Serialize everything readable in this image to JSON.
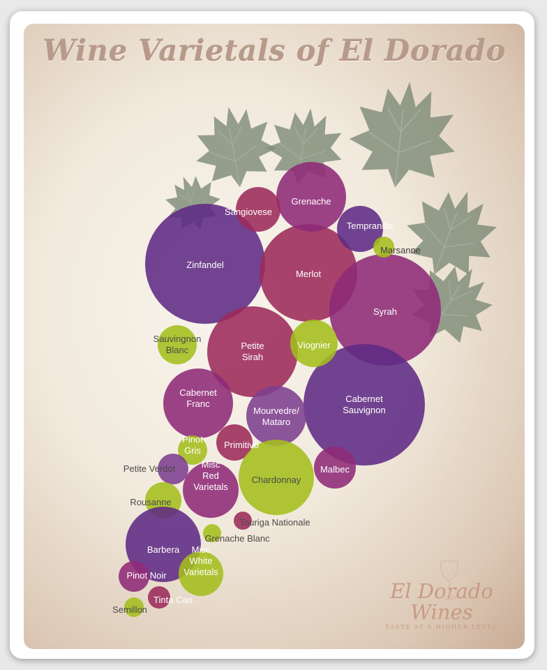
{
  "title": "Wine Varietals of El Dorado",
  "logo": {
    "brand": "El Dorado Wines",
    "tagline": "TASTE AT A HIGHER LEVEL"
  },
  "colors": {
    "red_purple": "#5e2a84",
    "red_magenta": "#8e2a78",
    "red_crimson": "#9c2a5a",
    "red_plum": "#7d3f8e",
    "white_green": "#a4be1c",
    "leaf": "#7f8c79",
    "title": "#b79a8a"
  },
  "grapes": [
    {
      "name": "Zinfandel",
      "lines": [
        "Zinfandel"
      ],
      "color": "#5e2a84"
    },
    {
      "name": "Merlot",
      "lines": [
        "Merlot"
      ],
      "color": "#9c2a5a"
    },
    {
      "name": "Syrah",
      "lines": [
        "Syrah"
      ],
      "color": "#8e2a78"
    },
    {
      "name": "Cabernet Sauvignon",
      "lines": [
        "Cabernet",
        "Sauvignon"
      ],
      "color": "#5e2a84"
    },
    {
      "name": "Petite Sirah",
      "lines": [
        "Petite",
        "Sirah"
      ],
      "color": "#9c2a5a"
    },
    {
      "name": "Grenache",
      "lines": [
        "Grenache"
      ],
      "color": "#8e2a78"
    },
    {
      "name": "Sangiovese",
      "lines": [
        "Sangiovese"
      ],
      "color": "#9c2a5a"
    },
    {
      "name": "Tempranillo",
      "lines": [
        "Tempranillo"
      ],
      "color": "#5e2a84"
    },
    {
      "name": "Marsanne",
      "lines": [
        "Marsanne"
      ],
      "color": "#a4be1c"
    },
    {
      "name": "Sauvingnon Blanc",
      "lines": [
        "Sauvingnon",
        "Blanc"
      ],
      "color": "#a4be1c"
    },
    {
      "name": "Viognier",
      "lines": [
        "Viognier"
      ],
      "color": "#a4be1c"
    },
    {
      "name": "Cabernet Franc",
      "lines": [
        "Cabernet",
        "Franc"
      ],
      "color": "#8e2a78"
    },
    {
      "name": "Mourvedre/Mataro",
      "lines": [
        "Mourvedre/",
        "Mataro"
      ],
      "color": "#7d3f8e"
    },
    {
      "name": "Pinot Gris",
      "lines": [
        "Pinot",
        "Gris"
      ],
      "color": "#a4be1c"
    },
    {
      "name": "Primitivo",
      "lines": [
        "Primitivo"
      ],
      "color": "#9c2a5a"
    },
    {
      "name": "Chardonnay",
      "lines": [
        "Chardonnay"
      ],
      "color": "#a4be1c"
    },
    {
      "name": "Malbec",
      "lines": [
        "Malbec"
      ],
      "color": "#8e2a78"
    },
    {
      "name": "Petite Verdot",
      "lines": [
        "Petite Verdot"
      ],
      "color": "#7d3f8e"
    },
    {
      "name": "Misc Red Varietals",
      "lines": [
        "Misc",
        "Red",
        "Varietals"
      ],
      "color": "#8e2a78"
    },
    {
      "name": "Rousanne",
      "lines": [
        "Rousanne"
      ],
      "color": "#a4be1c"
    },
    {
      "name": "Touriga Nationale",
      "lines": [
        "Touriga Nationale"
      ],
      "color": "#9c2a5a"
    },
    {
      "name": "Barbera",
      "lines": [
        "Barbera"
      ],
      "color": "#5e2a84"
    },
    {
      "name": "Grenache Blanc",
      "lines": [
        "Grenache Blanc"
      ],
      "color": "#a4be1c"
    },
    {
      "name": "Pinot Noir",
      "lines": [
        "Pinot Noir"
      ],
      "color": "#8e2a78"
    },
    {
      "name": "Misc White Varietals",
      "lines": [
        "Misc",
        "White",
        "Varietals"
      ],
      "color": "#a4be1c"
    },
    {
      "name": "Tinta Cao",
      "lines": [
        "Tinta Cao"
      ],
      "color": "#9c2a5a"
    },
    {
      "name": "Semillon",
      "lines": [
        "Semillon"
      ],
      "color": "#a4be1c"
    }
  ]
}
